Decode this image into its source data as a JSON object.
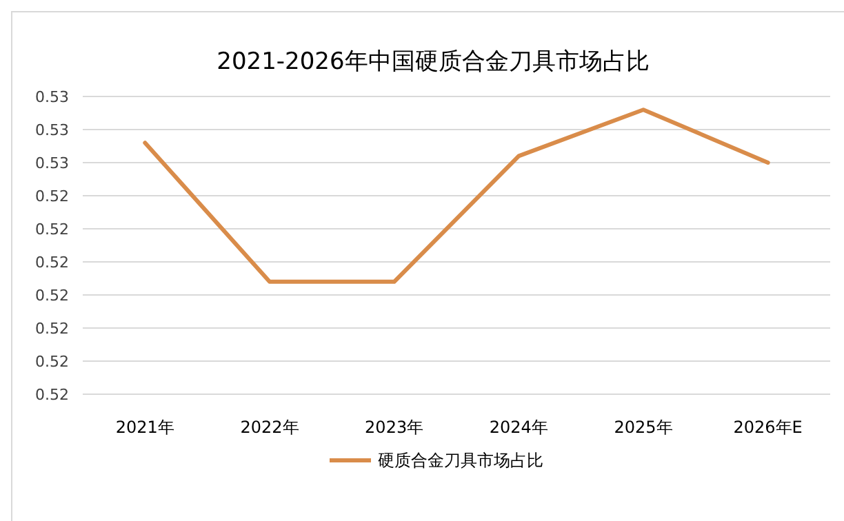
{
  "chart_data": {
    "type": "line",
    "title": "2021-2026年中国硬质合金刀具市场占比",
    "categories": [
      "2021年",
      "2022年",
      "2023年",
      "2024年",
      "2025年",
      "2026年E"
    ],
    "series": [
      {
        "name": "硬质合金刀具市场占比",
        "color": "#d98c4a",
        "values": [
          0.5258,
          0.5237,
          0.5237,
          0.5256,
          0.5263,
          0.5255
        ]
      }
    ],
    "ylim": [
      0.522,
      0.5265
    ],
    "yticks": [
      {
        "value": 0.522,
        "label": "0.52"
      },
      {
        "value": 0.5225,
        "label": "0.52"
      },
      {
        "value": 0.523,
        "label": "0.52"
      },
      {
        "value": 0.5235,
        "label": "0.52"
      },
      {
        "value": 0.524,
        "label": "0.52"
      },
      {
        "value": 0.5245,
        "label": "0.52"
      },
      {
        "value": 0.525,
        "label": "0.52"
      },
      {
        "value": 0.5255,
        "label": "0.53"
      },
      {
        "value": 0.526,
        "label": "0.53"
      },
      {
        "value": 0.5265,
        "label": "0.53"
      }
    ],
    "grid": "y",
    "legend": "bottom",
    "marker": "none",
    "line_style": "solid"
  }
}
